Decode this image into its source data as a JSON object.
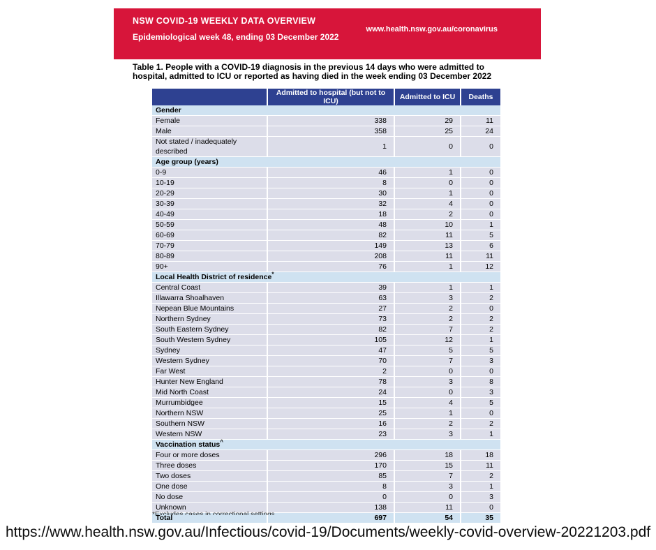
{
  "banner": {
    "title": "NSW COVID-19 WEEKLY DATA OVERVIEW",
    "subtitle": "Epidemiological week 48, ending 03 December 2022",
    "url": "www.health.nsw.gov.au/coronavirus"
  },
  "table_title": "Table 1. People with a COVID-19 diagnosis in the previous 14 days who were admitted to hospital, admitted to ICU or reported as having died in the week ending 03 December 2022",
  "colors": {
    "banner_red": "#d7153a",
    "header_navy": "#2e4191",
    "section_blue": "#cfe2f1",
    "row_lavender": "#dcdde9"
  },
  "table": {
    "col_headers": [
      "Admitted to hospital (but not to ICU)",
      "Admitted to ICU",
      "Deaths"
    ],
    "sections": [
      {
        "label": "Gender",
        "sup": "",
        "rows": [
          {
            "label": "Female",
            "hospital": "338",
            "icu": "29",
            "deaths": "11"
          },
          {
            "label": "Male",
            "hospital": "358",
            "icu": "25",
            "deaths": "24"
          },
          {
            "label": "Not stated / inadequately described",
            "hospital": "1",
            "icu": "0",
            "deaths": "0"
          }
        ]
      },
      {
        "label": "Age group (years)",
        "sup": "",
        "rows": [
          {
            "label": "0-9",
            "hospital": "46",
            "icu": "1",
            "deaths": "0"
          },
          {
            "label": "10-19",
            "hospital": "8",
            "icu": "0",
            "deaths": "0"
          },
          {
            "label": "20-29",
            "hospital": "30",
            "icu": "1",
            "deaths": "0"
          },
          {
            "label": "30-39",
            "hospital": "32",
            "icu": "4",
            "deaths": "0"
          },
          {
            "label": "40-49",
            "hospital": "18",
            "icu": "2",
            "deaths": "0"
          },
          {
            "label": "50-59",
            "hospital": "48",
            "icu": "10",
            "deaths": "1"
          },
          {
            "label": "60-69",
            "hospital": "82",
            "icu": "11",
            "deaths": "5"
          },
          {
            "label": "70-79",
            "hospital": "149",
            "icu": "13",
            "deaths": "6"
          },
          {
            "label": "80-89",
            "hospital": "208",
            "icu": "11",
            "deaths": "11"
          },
          {
            "label": "90+",
            "hospital": "76",
            "icu": "1",
            "deaths": "12"
          }
        ]
      },
      {
        "label": "Local Health District of residence",
        "sup": "*",
        "rows": [
          {
            "label": "Central Coast",
            "hospital": "39",
            "icu": "1",
            "deaths": "1"
          },
          {
            "label": "Illawarra Shoalhaven",
            "hospital": "63",
            "icu": "3",
            "deaths": "2"
          },
          {
            "label": "Nepean Blue Mountains",
            "hospital": "27",
            "icu": "2",
            "deaths": "0"
          },
          {
            "label": "Northern Sydney",
            "hospital": "73",
            "icu": "2",
            "deaths": "2"
          },
          {
            "label": "South Eastern Sydney",
            "hospital": "82",
            "icu": "7",
            "deaths": "2"
          },
          {
            "label": "South Western Sydney",
            "hospital": "105",
            "icu": "12",
            "deaths": "1"
          },
          {
            "label": "Sydney",
            "hospital": "47",
            "icu": "5",
            "deaths": "5"
          },
          {
            "label": "Western Sydney",
            "hospital": "70",
            "icu": "7",
            "deaths": "3"
          },
          {
            "label": "Far West",
            "hospital": "2",
            "icu": "0",
            "deaths": "0"
          },
          {
            "label": "Hunter New England",
            "hospital": "78",
            "icu": "3",
            "deaths": "8"
          },
          {
            "label": "Mid North Coast",
            "hospital": "24",
            "icu": "0",
            "deaths": "3"
          },
          {
            "label": "Murrumbidgee",
            "hospital": "15",
            "icu": "4",
            "deaths": "5"
          },
          {
            "label": "Northern NSW",
            "hospital": "25",
            "icu": "1",
            "deaths": "0"
          },
          {
            "label": "Southern NSW",
            "hospital": "16",
            "icu": "2",
            "deaths": "2"
          },
          {
            "label": "Western NSW",
            "hospital": "23",
            "icu": "3",
            "deaths": "1"
          }
        ]
      },
      {
        "label": "Vaccination status",
        "sup": "^",
        "rows": [
          {
            "label": "Four or more doses",
            "hospital": "296",
            "icu": "18",
            "deaths": "18"
          },
          {
            "label": "Three doses",
            "hospital": "170",
            "icu": "15",
            "deaths": "11"
          },
          {
            "label": "Two doses",
            "hospital": "85",
            "icu": "7",
            "deaths": "2"
          },
          {
            "label": "One dose",
            "hospital": "8",
            "icu": "3",
            "deaths": "1"
          },
          {
            "label": "No dose",
            "hospital": "0",
            "icu": "0",
            "deaths": "3"
          },
          {
            "label": "Unknown",
            "hospital": "138",
            "icu": "11",
            "deaths": "0"
          }
        ]
      }
    ],
    "total": {
      "label": "Total",
      "hospital": "697",
      "icu": "54",
      "deaths": "35"
    },
    "footnote": "*Excludes cases in correctional settings"
  },
  "source_url": "https://www.health.nsw.gov.au/Infectious/covid-19/Documents/weekly-covid-overview-20221203.pdf"
}
